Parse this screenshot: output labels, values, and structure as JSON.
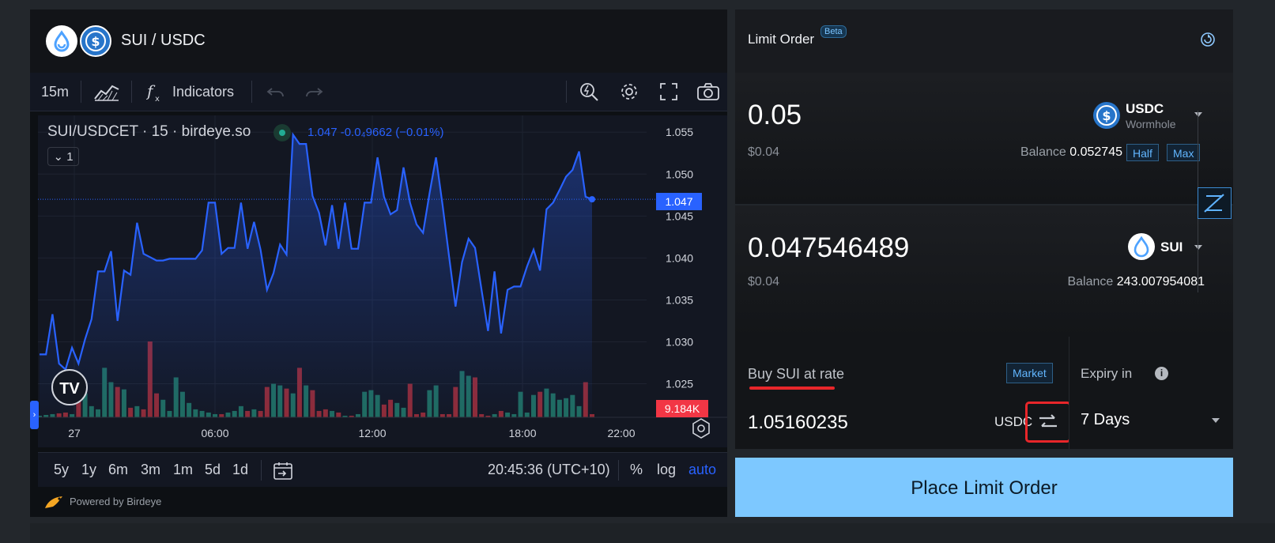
{
  "pair": {
    "title": "SUI / USDC"
  },
  "toolbar": {
    "interval": "15m",
    "indicators": "Indicators"
  },
  "chart": {
    "symbol_line": "SUI/USDCET · 15 · birdeye.so",
    "legend_values": "1.047 -0.0₄9662 (−0.01%)",
    "legend_toggle": "1",
    "last_price_label": "1.047",
    "volume_label": "9.184K"
  },
  "chart_data": {
    "type": "line",
    "title": "SUI/USDCET · 15 · birdeye.so",
    "y_ticks": [
      "1.055",
      "1.050",
      "1.045",
      "1.040",
      "1.035",
      "1.030",
      "1.025"
    ],
    "x_ticks": [
      "27",
      "06:00",
      "12:00",
      "18:00",
      "22:00"
    ],
    "ylim": [
      1.021,
      1.057
    ],
    "last_price": 1.047,
    "series": [
      {
        "values": [
          1.0285,
          1.0285,
          1.0333,
          1.0274,
          1.0267,
          1.0293,
          1.0274,
          1.0303,
          1.0327,
          1.0384,
          1.0384,
          1.0408,
          1.0325,
          1.0385,
          1.038,
          1.0442,
          1.0405,
          1.0401,
          1.0397,
          1.0397,
          1.0399,
          1.0399,
          1.0399,
          1.0399,
          1.0399,
          1.0409,
          1.0466,
          1.0466,
          1.0405,
          1.0412,
          1.0412,
          1.0466,
          1.0411,
          1.0443,
          1.041,
          1.0362,
          1.0382,
          1.0416,
          1.0404,
          1.0547,
          1.0536,
          1.0536,
          1.0474,
          1.0454,
          1.0415,
          1.0463,
          1.0411,
          1.0466,
          1.0411,
          1.0411,
          1.0466,
          1.0466,
          1.052,
          1.0473,
          1.0452,
          1.0457,
          1.0508,
          1.0466,
          1.044,
          1.043,
          1.0477,
          1.052,
          1.0463,
          1.0402,
          1.0342,
          1.0395,
          1.0423,
          1.0412,
          1.0362,
          1.0313,
          1.0384,
          1.031,
          1.0362,
          1.0366,
          1.0366,
          1.039,
          1.041,
          1.0385,
          1.0458,
          1.0466,
          1.0481,
          1.0497,
          1.0505,
          1.0527,
          1.0473,
          1.047
        ],
        "volume": [
          2,
          3,
          4,
          5,
          6,
          4,
          28,
          30,
          14,
          10,
          62,
          44,
          38,
          35,
          12,
          14,
          10,
          95,
          30,
          22,
          8,
          50,
          32,
          18,
          10,
          8,
          6,
          4,
          4,
          6,
          8,
          14,
          8,
          10,
          8,
          38,
          42,
          40,
          36,
          30,
          62,
          40,
          34,
          8,
          10,
          8,
          6,
          2,
          2,
          4,
          32,
          34,
          28,
          16,
          22,
          18,
          12,
          42,
          4,
          6,
          34,
          40,
          4,
          4,
          38,
          58,
          52,
          50,
          4,
          2,
          4,
          8,
          6,
          4,
          32,
          6,
          28,
          32,
          36,
          30,
          22,
          24,
          28,
          14,
          44,
          4
        ]
      }
    ]
  },
  "range_bar": {
    "ranges": [
      "5y",
      "1y",
      "6m",
      "3m",
      "1m",
      "5d",
      "1d"
    ],
    "time": "20:45:36 (UTC+10)",
    "percent": "%",
    "log": "log",
    "auto": "auto"
  },
  "powered_by": "Powered by Birdeye",
  "order": {
    "title": "Limit Order",
    "beta": "Beta",
    "sell": {
      "amount": "0.05",
      "usd": "$0.04",
      "token": "USDC",
      "token_sub": "Wormhole",
      "balance_label": "Balance",
      "balance": "0.052745",
      "half": "Half",
      "max": "Max"
    },
    "buy": {
      "amount": "0.047546489",
      "usd": "$0.04",
      "token": "SUI",
      "balance_label": "Balance",
      "balance": "243.007954081"
    },
    "rate": {
      "label": "Buy SUI at rate",
      "market": "Market",
      "value": "1.05160235",
      "unit": "USDC"
    },
    "expiry": {
      "label": "Expiry in",
      "value": "7 Days"
    },
    "place_button": "Place Limit Order"
  },
  "colors": {
    "accent": "#2962ff",
    "up": "#22ab94",
    "down": "#f23645",
    "button": "#7dc8ff",
    "highlight": "#e8262a"
  },
  "icons": [
    "sui-logo",
    "usdc-logo",
    "chart-type-icon",
    "indicators-fx-icon",
    "undo-icon",
    "redo-icon",
    "quick-search-icon",
    "settings-icon",
    "fullscreen-icon",
    "camera-icon",
    "tradingview-logo",
    "calendar-goto-icon",
    "chart-settings-icon",
    "birdeye-logo",
    "refresh-icon",
    "swap-direction-icon",
    "info-icon",
    "chevron-down-icon"
  ]
}
